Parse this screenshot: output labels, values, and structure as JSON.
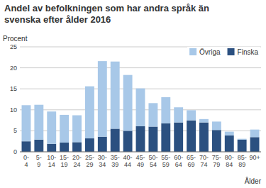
{
  "chart_data": {
    "type": "bar",
    "stacked": true,
    "title": "Andel av befolkningen som har andra språk än",
    "subtitle": "svenska efter ålder 2016",
    "y_label": "Procent",
    "x_label": "Ålder",
    "categories": [
      "0-\n4",
      "5-\n9",
      "10-\n14",
      "15-\n19",
      "20-\n24",
      "25-\n29",
      "30-\n34",
      "35-\n39",
      "40-\n44",
      "45-\n49",
      "50-\n54",
      "55-\n59",
      "60-\n64",
      "65-\n69",
      "70-\n74",
      "75-\n79",
      "80-\n84",
      "85-\n89",
      "90+"
    ],
    "series": [
      {
        "name": "Finska",
        "color": "#2b5080",
        "values": [
          2.5,
          2.9,
          1.9,
          2.2,
          2.3,
          3.2,
          3.6,
          5.5,
          5.0,
          6.1,
          6.0,
          6.8,
          7.0,
          7.5,
          7.0,
          5.2,
          3.9,
          2.9,
          3.5
        ]
      },
      {
        "name": "Övriga",
        "color": "#a8c8e8",
        "values": [
          8.6,
          8.3,
          7.7,
          6.6,
          6.4,
          12.4,
          18.0,
          16.0,
          13.3,
          9.0,
          5.6,
          6.2,
          3.6,
          2.4,
          0.8,
          2.0,
          0.9,
          0.2,
          1.8
        ]
      }
    ],
    "ylim": [
      0,
      25
    ],
    "yticks": [
      0,
      5,
      10,
      15,
      20,
      25
    ],
    "grid": true,
    "legend": "upper right"
  }
}
